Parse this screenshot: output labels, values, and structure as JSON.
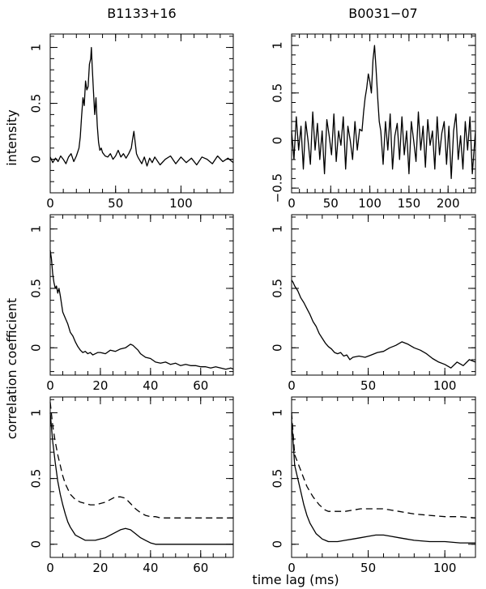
{
  "figure": {
    "column_titles": [
      "B1133+16",
      "B0031−07"
    ],
    "ylabel_top": "intensity",
    "ylabel_corr": "correlation coefficient",
    "xlabel_bottom": "time lag (ms)"
  },
  "chart_data": [
    {
      "id": "profile-b1133",
      "type": "line",
      "column": 0,
      "row": 0,
      "xlim": [
        0,
        140
      ],
      "ylim": [
        -0.3,
        1.12
      ],
      "xticks": [
        0,
        50,
        100
      ],
      "xtick_labels": [
        "0",
        "50",
        "100"
      ],
      "yticks": [
        0,
        0.5,
        1
      ],
      "ytick_labels": [
        "0",
        "0.5",
        "1"
      ],
      "xminor": 10,
      "yminor": 0.1,
      "series": [
        {
          "style": "solid",
          "x": [
            0,
            2,
            4,
            6,
            8,
            10,
            12,
            14,
            16,
            18,
            20,
            22,
            23,
            24,
            25,
            26,
            27,
            28,
            29,
            30,
            31,
            31.5,
            32,
            33,
            34,
            35,
            36,
            37,
            38,
            39,
            40,
            42,
            44,
            46,
            48,
            50,
            52,
            54,
            56,
            58,
            60,
            62,
            63,
            64,
            65,
            66,
            67,
            68,
            70,
            72,
            74,
            76,
            78,
            80,
            84,
            88,
            92,
            96,
            100,
            104,
            108,
            112,
            116,
            120,
            124,
            128,
            132,
            136,
            140
          ],
          "y": [
            0.02,
            -0.03,
            0.01,
            -0.02,
            0.03,
            0.0,
            -0.04,
            0.02,
            0.05,
            -0.02,
            0.03,
            0.1,
            0.2,
            0.38,
            0.55,
            0.48,
            0.7,
            0.62,
            0.65,
            0.85,
            0.9,
            1.0,
            0.85,
            0.62,
            0.4,
            0.55,
            0.3,
            0.15,
            0.08,
            0.1,
            0.06,
            0.03,
            0.02,
            0.05,
            0.0,
            0.03,
            0.08,
            0.02,
            0.05,
            0.01,
            0.05,
            0.1,
            0.18,
            0.25,
            0.15,
            0.05,
            0.02,
            0.0,
            -0.04,
            0.02,
            -0.06,
            0.01,
            -0.03,
            0.02,
            -0.05,
            0.0,
            0.03,
            -0.04,
            0.02,
            -0.03,
            0.01,
            -0.05,
            0.02,
            0.0,
            -0.04,
            0.03,
            -0.02,
            0.01,
            -0.03
          ]
        }
      ]
    },
    {
      "id": "profile-b0031",
      "type": "line",
      "column": 1,
      "row": 0,
      "xlim": [
        0,
        235
      ],
      "ylim": [
        -0.55,
        1.12
      ],
      "xticks": [
        0,
        50,
        100,
        150,
        200
      ],
      "xtick_labels": [
        "0",
        "50",
        "100",
        "150",
        "200"
      ],
      "yticks": [
        -0.5,
        0,
        0.5,
        1
      ],
      "ytick_labels": [
        "−0.5",
        "0",
        "0.5",
        "1"
      ],
      "xminor": 10,
      "yminor": 0.1,
      "series": [
        {
          "style": "solid",
          "x": [
            0,
            3,
            6,
            9,
            12,
            15,
            18,
            21,
            24,
            27,
            30,
            33,
            36,
            39,
            42,
            45,
            48,
            51,
            54,
            57,
            60,
            63,
            66,
            69,
            72,
            75,
            78,
            81,
            84,
            87,
            90,
            92,
            94,
            96,
            98,
            100,
            102,
            104,
            106,
            108,
            110,
            112,
            114,
            117,
            120,
            123,
            126,
            129,
            132,
            135,
            138,
            141,
            144,
            147,
            150,
            153,
            156,
            159,
            162,
            165,
            168,
            171,
            174,
            177,
            180,
            183,
            186,
            189,
            192,
            195,
            198,
            201,
            204,
            207,
            210,
            213,
            216,
            219,
            222,
            225,
            228,
            231,
            235
          ],
          "y": [
            0.1,
            -0.2,
            0.25,
            -0.1,
            0.15,
            -0.3,
            0.2,
            0.0,
            -0.25,
            0.3,
            -0.1,
            0.18,
            -0.2,
            0.1,
            -0.35,
            0.22,
            0.05,
            -0.15,
            0.28,
            -0.22,
            0.1,
            -0.05,
            0.25,
            -0.3,
            0.15,
            0.0,
            -0.2,
            0.2,
            -0.1,
            0.12,
            0.1,
            0.3,
            0.45,
            0.55,
            0.7,
            0.62,
            0.5,
            0.85,
            1.0,
            0.75,
            0.45,
            0.2,
            0.1,
            -0.25,
            0.2,
            -0.1,
            0.28,
            -0.3,
            0.05,
            0.18,
            -0.2,
            0.25,
            -0.15,
            0.1,
            -0.35,
            0.2,
            0.0,
            -0.22,
            0.3,
            -0.1,
            0.15,
            -0.28,
            0.22,
            -0.05,
            0.1,
            -0.3,
            0.25,
            -0.15,
            0.08,
            0.2,
            -0.25,
            0.15,
            -0.4,
            0.1,
            0.28,
            -0.2,
            0.05,
            -0.3,
            0.2,
            -0.1,
            0.25,
            -0.35,
            0.1
          ]
        }
      ]
    },
    {
      "id": "corr-b1133",
      "type": "line",
      "column": 0,
      "row": 1,
      "xlim": [
        0,
        73
      ],
      "ylim": [
        -0.23,
        1.12
      ],
      "xticks": [
        0,
        20,
        40,
        60
      ],
      "xtick_labels": [
        "0",
        "20",
        "40",
        "60"
      ],
      "yticks": [
        0,
        0.5,
        1
      ],
      "ytick_labels": [
        "0",
        "0.5",
        "1"
      ],
      "xminor": 5,
      "yminor": 0.1,
      "series": [
        {
          "style": "solid",
          "x": [
            0,
            0.5,
            1,
            1.5,
            2,
            2.5,
            3,
            3.5,
            4,
            5,
            6,
            7,
            8,
            9,
            10,
            11,
            12,
            13,
            14,
            15,
            16,
            17,
            18,
            19,
            20,
            22,
            24,
            26,
            28,
            30,
            32,
            33,
            34,
            35,
            36,
            38,
            40,
            42,
            44,
            46,
            48,
            50,
            52,
            54,
            56,
            58,
            60,
            62,
            64,
            66,
            68,
            70,
            72,
            73
          ],
          "y": [
            0.82,
            0.75,
            0.62,
            0.55,
            0.5,
            0.52,
            0.46,
            0.5,
            0.44,
            0.3,
            0.25,
            0.2,
            0.13,
            0.1,
            0.05,
            0.01,
            -0.02,
            -0.04,
            -0.03,
            -0.05,
            -0.04,
            -0.06,
            -0.05,
            -0.04,
            -0.04,
            -0.05,
            -0.02,
            -0.03,
            -0.01,
            0.0,
            0.03,
            0.02,
            0.0,
            -0.02,
            -0.05,
            -0.08,
            -0.09,
            -0.12,
            -0.13,
            -0.12,
            -0.14,
            -0.13,
            -0.15,
            -0.14,
            -0.15,
            -0.15,
            -0.16,
            -0.16,
            -0.17,
            -0.16,
            -0.17,
            -0.18,
            -0.17,
            -0.18
          ]
        }
      ]
    },
    {
      "id": "corr-b0031",
      "type": "line",
      "column": 1,
      "row": 1,
      "xlim": [
        0,
        120
      ],
      "ylim": [
        -0.23,
        1.12
      ],
      "xticks": [
        0,
        50,
        100
      ],
      "xtick_labels": [
        "0",
        "50",
        "100"
      ],
      "yticks": [
        0,
        0.5,
        1
      ],
      "ytick_labels": [
        "0",
        "0.5",
        "1"
      ],
      "xminor": 10,
      "yminor": 0.1,
      "series": [
        {
          "style": "solid",
          "x": [
            0,
            1,
            2,
            3,
            4,
            6,
            8,
            10,
            12,
            14,
            16,
            18,
            20,
            22,
            24,
            26,
            28,
            30,
            32,
            34,
            36,
            38,
            40,
            44,
            48,
            52,
            56,
            60,
            64,
            68,
            72,
            76,
            80,
            84,
            88,
            92,
            96,
            100,
            104,
            108,
            112,
            116,
            120
          ],
          "y": [
            0.57,
            0.55,
            0.52,
            0.5,
            0.48,
            0.42,
            0.38,
            0.33,
            0.28,
            0.22,
            0.18,
            0.12,
            0.08,
            0.04,
            0.01,
            -0.01,
            -0.04,
            -0.05,
            -0.04,
            -0.07,
            -0.06,
            -0.1,
            -0.08,
            -0.07,
            -0.08,
            -0.06,
            -0.04,
            -0.03,
            0.0,
            0.02,
            0.05,
            0.03,
            0.0,
            -0.02,
            -0.05,
            -0.09,
            -0.12,
            -0.14,
            -0.17,
            -0.12,
            -0.15,
            -0.1,
            -0.12
          ]
        }
      ]
    },
    {
      "id": "acf-b1133",
      "type": "line",
      "column": 0,
      "row": 2,
      "xlim": [
        0,
        73
      ],
      "ylim": [
        -0.1,
        1.12
      ],
      "xticks": [
        0,
        20,
        40,
        60
      ],
      "xtick_labels": [
        "0",
        "20",
        "40",
        "60"
      ],
      "yticks": [
        0,
        0.5,
        1
      ],
      "ytick_labels": [
        "0",
        "0.5",
        "1"
      ],
      "xminor": 5,
      "yminor": 0.1,
      "series": [
        {
          "style": "solid",
          "x": [
            0,
            1,
            2,
            3,
            4,
            5,
            6,
            7,
            8,
            9,
            10,
            12,
            14,
            16,
            18,
            20,
            22,
            24,
            26,
            28,
            30,
            32,
            34,
            36,
            38,
            40,
            42,
            44,
            50,
            60,
            73
          ],
          "y": [
            1.0,
            0.78,
            0.62,
            0.48,
            0.38,
            0.3,
            0.23,
            0.17,
            0.13,
            0.1,
            0.07,
            0.05,
            0.03,
            0.03,
            0.03,
            0.04,
            0.05,
            0.07,
            0.09,
            0.11,
            0.12,
            0.11,
            0.08,
            0.05,
            0.03,
            0.01,
            0.0,
            0.0,
            0.0,
            0.0,
            0.0
          ]
        },
        {
          "style": "dashed",
          "x": [
            0,
            1,
            2,
            3,
            4,
            5,
            6,
            7,
            8,
            9,
            10,
            12,
            14,
            16,
            18,
            20,
            22,
            24,
            26,
            28,
            30,
            32,
            34,
            36,
            38,
            40,
            42,
            44,
            50,
            60,
            73
          ],
          "y": [
            1.08,
            0.9,
            0.78,
            0.68,
            0.6,
            0.52,
            0.46,
            0.42,
            0.38,
            0.36,
            0.34,
            0.32,
            0.31,
            0.3,
            0.3,
            0.31,
            0.32,
            0.34,
            0.36,
            0.36,
            0.35,
            0.31,
            0.27,
            0.24,
            0.22,
            0.21,
            0.21,
            0.2,
            0.2,
            0.2,
            0.2
          ]
        }
      ]
    },
    {
      "id": "acf-b0031",
      "type": "line",
      "column": 1,
      "row": 2,
      "xlim": [
        0,
        120
      ],
      "ylim": [
        -0.1,
        1.12
      ],
      "xticks": [
        0,
        50,
        100
      ],
      "xtick_labels": [
        "0",
        "50",
        "100"
      ],
      "yticks": [
        0,
        0.5,
        1
      ],
      "ytick_labels": [
        "0",
        "0.5",
        "1"
      ],
      "xminor": 10,
      "yminor": 0.1,
      "series": [
        {
          "style": "solid",
          "x": [
            0,
            2,
            4,
            6,
            8,
            10,
            12,
            14,
            16,
            18,
            20,
            22,
            24,
            26,
            28,
            30,
            35,
            40,
            45,
            50,
            55,
            60,
            65,
            70,
            75,
            80,
            90,
            100,
            110,
            120
          ],
          "y": [
            0.95,
            0.6,
            0.5,
            0.4,
            0.3,
            0.22,
            0.16,
            0.12,
            0.08,
            0.06,
            0.04,
            0.03,
            0.02,
            0.02,
            0.02,
            0.02,
            0.03,
            0.04,
            0.05,
            0.06,
            0.07,
            0.07,
            0.06,
            0.05,
            0.04,
            0.03,
            0.02,
            0.02,
            0.01,
            0.01
          ]
        },
        {
          "style": "dashed",
          "x": [
            0,
            2,
            4,
            6,
            8,
            10,
            12,
            14,
            16,
            18,
            20,
            22,
            24,
            26,
            28,
            30,
            35,
            40,
            45,
            50,
            55,
            60,
            65,
            70,
            75,
            80,
            90,
            100,
            110,
            120
          ],
          "y": [
            1.0,
            0.68,
            0.62,
            0.56,
            0.5,
            0.44,
            0.4,
            0.36,
            0.33,
            0.3,
            0.28,
            0.26,
            0.25,
            0.25,
            0.25,
            0.25,
            0.25,
            0.26,
            0.27,
            0.27,
            0.27,
            0.27,
            0.26,
            0.25,
            0.24,
            0.23,
            0.22,
            0.21,
            0.21,
            0.2
          ]
        }
      ]
    }
  ]
}
